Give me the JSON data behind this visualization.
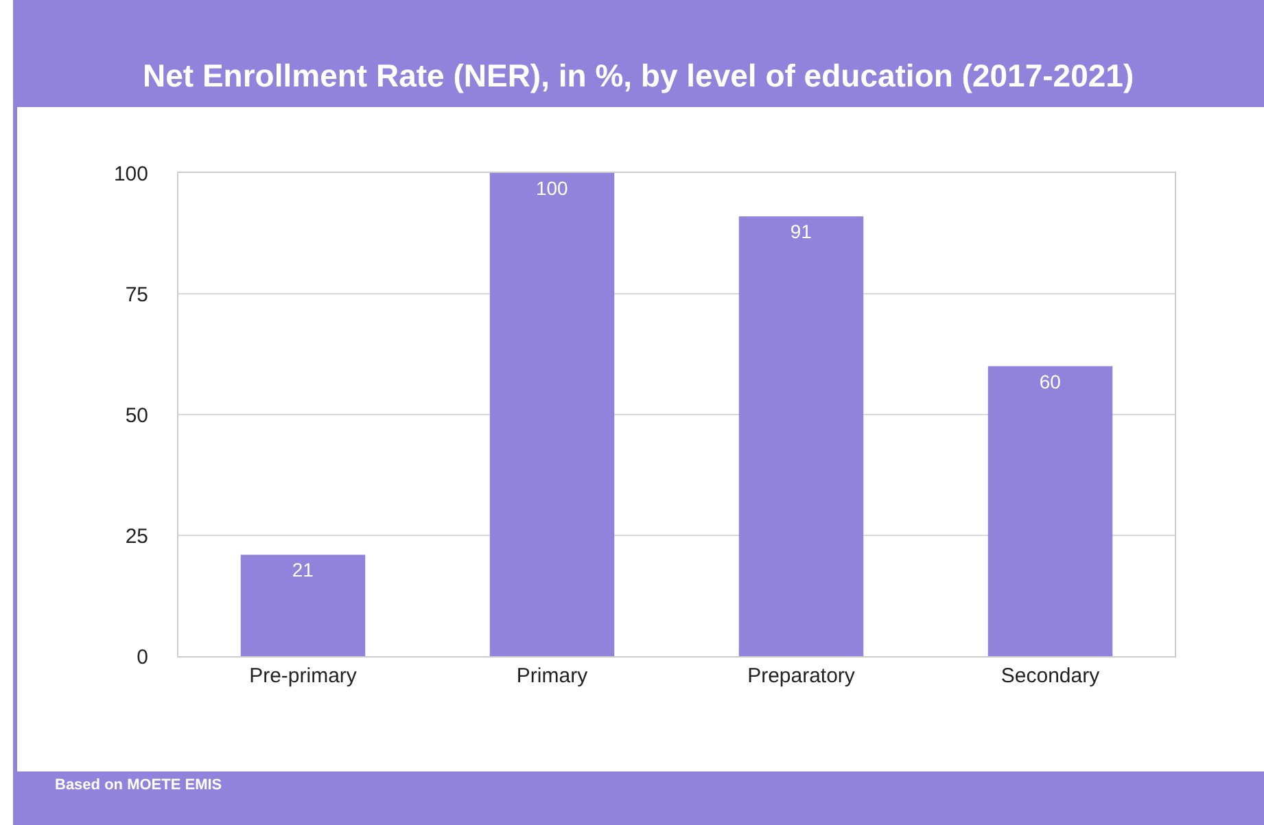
{
  "chart_data": {
    "type": "bar",
    "title": "Net Enrollment Rate (NER), in %, by level of education (2017-2021)",
    "categories": [
      "Pre-primary",
      "Primary",
      "Preparatory",
      "Secondary"
    ],
    "values": [
      21,
      100,
      91,
      60
    ],
    "color": "#9182dc",
    "ylim": [
      0,
      100
    ],
    "yticks": [
      0,
      25,
      50,
      75,
      100
    ],
    "grid": "y",
    "data_labels": true,
    "annotations": [
      "Based on MOETE EMIS"
    ]
  }
}
